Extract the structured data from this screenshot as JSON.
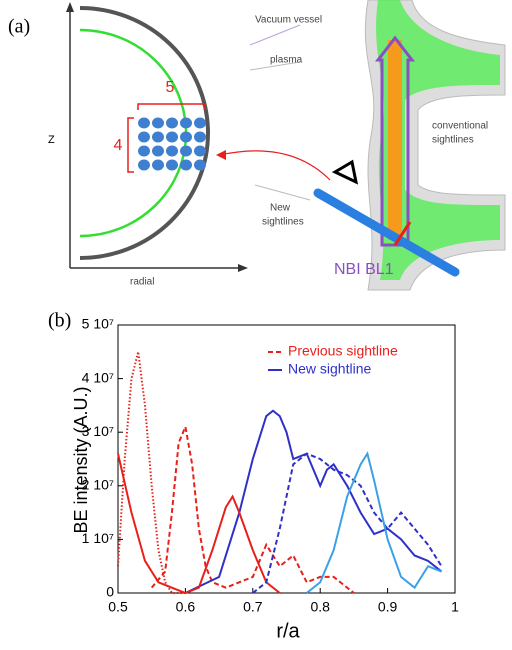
{
  "panel_a": {
    "panel_label": "(a)",
    "z_axis": "Z",
    "radial_axis": "radial",
    "cols": "5",
    "rows": "4",
    "vacuum_vessel": "Vacuum vessel",
    "plasma": "plasma",
    "conventional": [
      "conventional",
      "sightlines"
    ],
    "new_sightlines": [
      "New",
      "sightlines"
    ],
    "nbi": "NBI BL1"
  },
  "chart_data": {
    "type": "line",
    "panel_label": "(b)",
    "ylabel": "BE intensity (A.U.)",
    "xlabel": "r/a",
    "xlim": [
      0.5,
      1
    ],
    "xticks": [
      0.5,
      0.6,
      0.7,
      0.8,
      0.9,
      1
    ],
    "ylim": [
      0,
      50000000
    ],
    "yticks": [
      0,
      {
        "value": 10000000,
        "label": "1 10⁷"
      },
      {
        "value": 20000000,
        "label": "2 10⁷"
      },
      {
        "value": 30000000,
        "label": "3 10⁷"
      },
      {
        "value": 40000000,
        "label": "4 10⁷"
      },
      {
        "value": 50000000,
        "label": "5 10⁷"
      }
    ],
    "series": [
      {
        "name": "Previous sightline",
        "color": "#e8201c",
        "dash": "dashed",
        "x": [
          0.55,
          0.57,
          0.58,
          0.59,
          0.6,
          0.61,
          0.62,
          0.63,
          0.64,
          0.66,
          0.7,
          0.72,
          0.74,
          0.76,
          0.78,
          0.8,
          0.82,
          0.85
        ],
        "values": [
          1000000,
          4000000,
          15000000,
          28000000,
          31000000,
          24000000,
          12000000,
          5000000,
          2000000,
          1000000,
          3000000,
          9000000,
          5000000,
          7000000,
          2000000,
          3000000,
          3000000,
          0
        ]
      },
      {
        "name": "New sightline",
        "color": "#3030c8",
        "dash": "solid",
        "x": [
          0.6,
          0.65,
          0.68,
          0.7,
          0.72,
          0.73,
          0.74,
          0.75,
          0.76,
          0.78,
          0.8,
          0.81,
          0.82,
          0.84,
          0.86,
          0.88,
          0.9,
          0.92,
          0.94,
          0.96,
          0.98
        ],
        "values": [
          0,
          3000000,
          15000000,
          25000000,
          33000000,
          34000000,
          33000000,
          30000000,
          25000000,
          26000000,
          20000000,
          23000000,
          24000000,
          20000000,
          15000000,
          11000000,
          12000000,
          10000000,
          7000000,
          6000000,
          4000000
        ]
      },
      {
        "color": "#e8201c",
        "dash": "solid",
        "x": [
          0.5,
          0.52,
          0.54,
          0.56,
          0.58,
          0.6,
          0.62,
          0.64,
          0.66,
          0.67,
          0.68,
          0.7,
          0.72,
          0.74
        ],
        "values": [
          26000000,
          15000000,
          6000000,
          2000000,
          1000000,
          0,
          1000000,
          8000000,
          16000000,
          18000000,
          15000000,
          8000000,
          2000000,
          0
        ]
      },
      {
        "color": "#e8201c",
        "dash": "dotted",
        "x": [
          0.5,
          0.51,
          0.52,
          0.53,
          0.54,
          0.55,
          0.56,
          0.57,
          0.58,
          0.6
        ],
        "values": [
          5000000,
          25000000,
          40000000,
          45000000,
          35000000,
          20000000,
          8000000,
          2000000,
          0,
          0
        ]
      },
      {
        "color": "#3030c8",
        "dash": "dashed",
        "x": [
          0.7,
          0.72,
          0.74,
          0.76,
          0.78,
          0.8,
          0.82,
          0.84,
          0.86,
          0.88,
          0.9,
          0.92,
          0.94,
          0.96,
          0.98
        ],
        "values": [
          0,
          2000000,
          12000000,
          24000000,
          26000000,
          25000000,
          23000000,
          22000000,
          20000000,
          15000000,
          12000000,
          15000000,
          12000000,
          9000000,
          5000000
        ]
      },
      {
        "color": "#3aa0e8",
        "dash": "solid",
        "x": [
          0.78,
          0.8,
          0.82,
          0.84,
          0.86,
          0.87,
          0.88,
          0.9,
          0.92,
          0.94,
          0.96,
          0.98
        ],
        "values": [
          0,
          2000000,
          8000000,
          18000000,
          24000000,
          26000000,
          21000000,
          10000000,
          3000000,
          1000000,
          5000000,
          4000000
        ]
      }
    ]
  }
}
